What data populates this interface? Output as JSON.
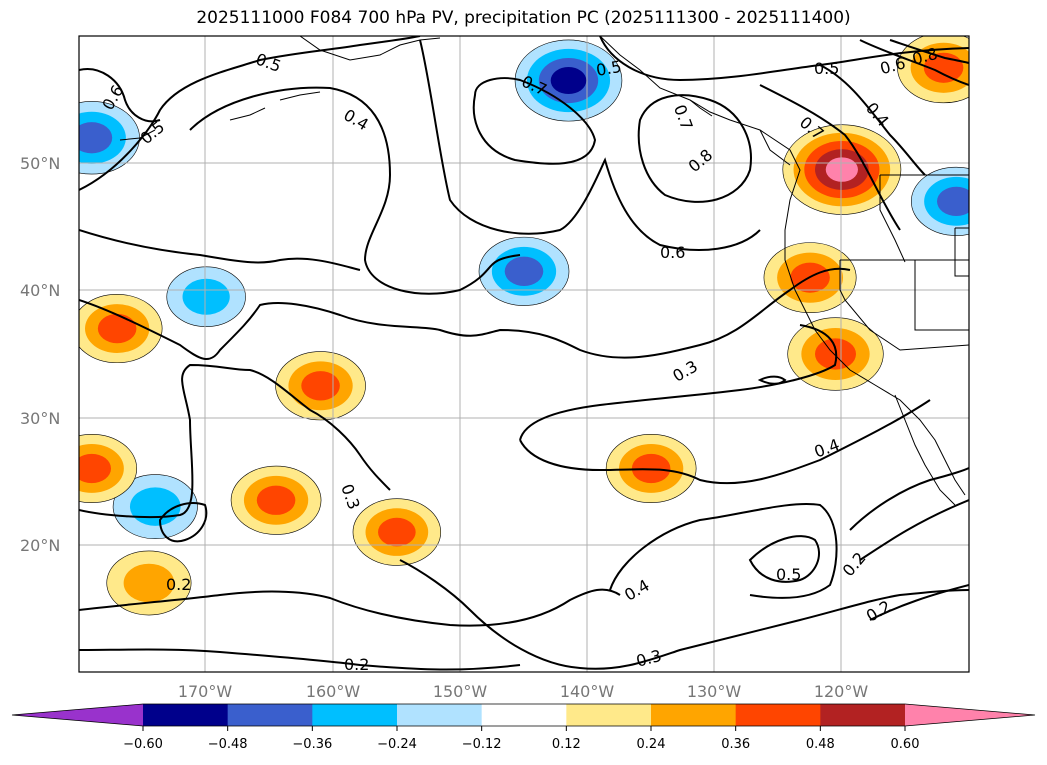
{
  "chart_data": {
    "type": "contour-map",
    "title": "2025111000 F084 700 hPa PV, precipitation PC (2025111300 - 2025111400)",
    "lon_range": [
      -180,
      -110
    ],
    "lat_range": [
      10,
      60
    ],
    "grid": true,
    "lat_ticks": [
      "50°N",
      "40°N",
      "30°N",
      "20°N"
    ],
    "lon_ticks": [
      "170°W",
      "160°W",
      "150°W",
      "140°W",
      "130°W",
      "120°W"
    ],
    "colorbar": {
      "orientation": "horizontal",
      "extend": "both",
      "levels": [
        -0.6,
        -0.48,
        -0.36,
        -0.24,
        -0.12,
        0.12,
        0.24,
        0.36,
        0.48,
        0.6
      ],
      "tick_labels": [
        "−0.60",
        "−0.48",
        "−0.36",
        "−0.24",
        "−0.12",
        "0.12",
        "0.24",
        "0.36",
        "0.48",
        "0.60"
      ],
      "colors": [
        "#9932cc",
        "#00008b",
        "#3a5fcd",
        "#00bfff",
        "#b0e2ff",
        "#ffffff",
        "#ffe98a",
        "#ffa500",
        "#ff4500",
        "#b22222",
        "#ff82ab"
      ]
    },
    "contour_labels": [
      "0.5",
      "0.6",
      "0.5",
      "0.4",
      "0.7",
      "0.5",
      "0.7",
      "0.8",
      "0.6",
      "0.5",
      "0.8",
      "0.4",
      "0.7",
      "0.6",
      "0.3",
      "0.4",
      "0.3",
      "0.5",
      "0.2",
      "0.4",
      "0.3",
      "0.2",
      "0.2",
      "0.2"
    ],
    "precip_blobs": [
      {
        "lon": -179,
        "lat": 52,
        "value": -0.45
      },
      {
        "lon": -141.5,
        "lat": 56.5,
        "value": -0.55
      },
      {
        "lon": -111,
        "lat": 47,
        "value": -0.4
      },
      {
        "lon": -145,
        "lat": 41.5,
        "value": -0.4
      },
      {
        "lon": -174,
        "lat": 23,
        "value": -0.35
      },
      {
        "lon": -170,
        "lat": 39.5,
        "value": -0.3
      },
      {
        "lon": -177,
        "lat": 37,
        "value": 0.4
      },
      {
        "lon": -161,
        "lat": 32.5,
        "value": 0.4
      },
      {
        "lon": -164.5,
        "lat": 23.5,
        "value": 0.4
      },
      {
        "lon": -174.5,
        "lat": 17,
        "value": 0.35
      },
      {
        "lon": -135,
        "lat": 26,
        "value": 0.4
      },
      {
        "lon": -122.5,
        "lat": 41,
        "value": 0.42
      },
      {
        "lon": -120,
        "lat": 49.5,
        "value": 0.65
      },
      {
        "lon": -120.5,
        "lat": 35,
        "value": 0.45
      },
      {
        "lon": -112,
        "lat": 57.5,
        "value": 0.42
      },
      {
        "lon": -155,
        "lat": 21,
        "value": 0.38
      },
      {
        "lon": -179,
        "lat": 26,
        "value": 0.4
      }
    ]
  }
}
